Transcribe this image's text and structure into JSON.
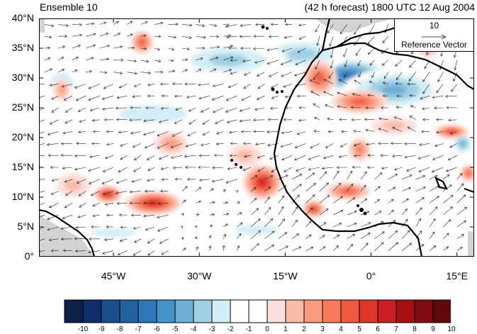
{
  "header": {
    "left_title": "Ensemble 10",
    "right_title": "(42 h forecast) 1800 UTC 12 Aug 2004"
  },
  "reference_vector": {
    "magnitude": "10",
    "label": "Reference Vector"
  },
  "chart_data": {
    "type": "heatmap",
    "description_fields": "anomaly field with wind vectors",
    "lat_range": [
      0,
      40
    ],
    "lon_range": [
      -58,
      18
    ],
    "lat_ticks": [
      "40°N",
      "35°N",
      "30°N",
      "25°N",
      "20°N",
      "15°N",
      "10°N",
      "5°N",
      "0°"
    ],
    "lon_ticks": [
      "45°W",
      "30°W",
      "15°W",
      "0°",
      "15°E"
    ],
    "lat_tick_values": [
      40,
      35,
      30,
      25,
      20,
      15,
      10,
      5,
      0
    ],
    "lon_tick_values": [
      -45,
      -30,
      -15,
      0,
      15
    ],
    "colorbar_labels": [
      "-10",
      "-9",
      "-8",
      "-7",
      "-6",
      "-5",
      "-4",
      "-3",
      "-2",
      "-1",
      "0",
      "1",
      "2",
      "3",
      "4",
      "5",
      "6",
      "7",
      "8",
      "9",
      "10"
    ],
    "colorbar_colors": [
      "#0d2149",
      "#0f2d69",
      "#1b4f8a",
      "#24629f",
      "#2e78b6",
      "#4693c8",
      "#6eaed5",
      "#9fcfe3",
      "#d4eef7",
      "#ffffff",
      "#ffffff",
      "#fde0dd",
      "#fcbba6",
      "#fc9a80",
      "#f6795c",
      "#ef5a42",
      "#e0362a",
      "#c91f23",
      "#a50f15",
      "#7f0d0f",
      "#5e0a0a"
    ],
    "anomaly_blobs": [
      {
        "lon": -4,
        "lat": 30.5,
        "value": -6,
        "rlon": 8,
        "rlat": 3
      },
      {
        "lon": 4,
        "lat": 28,
        "value": -4,
        "rlon": 9,
        "rlat": 3.5
      },
      {
        "lon": -12,
        "lat": 34,
        "value": -3,
        "rlon": 8,
        "rlat": 3
      },
      {
        "lon": -25,
        "lat": 33,
        "value": -3,
        "rlon": 10,
        "rlat": 3
      },
      {
        "lon": -38,
        "lat": 24,
        "value": -2,
        "rlon": 12,
        "rlat": 3
      },
      {
        "lon": -20,
        "lat": 4.5,
        "value": -2,
        "rlon": 8,
        "rlat": 1.5
      },
      {
        "lon": -45,
        "lat": 4,
        "value": -2,
        "rlon": 8,
        "rlat": 1.5
      },
      {
        "lon": 16,
        "lat": 19,
        "value": -4,
        "rlon": 2,
        "rlat": 2
      },
      {
        "lon": -54,
        "lat": 29,
        "value": -2,
        "rlon": 4,
        "rlat": 4
      },
      {
        "lon": -38,
        "lat": 9,
        "value": 7,
        "rlon": 5,
        "rlat": 2
      },
      {
        "lon": -46,
        "lat": 10.5,
        "value": 7,
        "rlon": 2.5,
        "rlat": 1.5
      },
      {
        "lon": -19,
        "lat": 12.5,
        "value": 7,
        "rlon": 3.5,
        "rlat": 3
      },
      {
        "lon": -10,
        "lat": 8,
        "value": 6,
        "rlon": 2,
        "rlat": 1.5
      },
      {
        "lon": -4,
        "lat": 11,
        "value": 5,
        "rlon": 4,
        "rlat": 1.5
      },
      {
        "lon": -2,
        "lat": 26,
        "value": 5,
        "rlon": 5,
        "rlat": 2
      },
      {
        "lon": -9,
        "lat": 30,
        "value": 5,
        "rlon": 3,
        "rlat": 3
      },
      {
        "lon": -40,
        "lat": 36,
        "value": 5,
        "rlon": 2,
        "rlat": 2
      },
      {
        "lon": 14,
        "lat": 21,
        "value": 6,
        "rlon": 3,
        "rlat": 1.2
      },
      {
        "lon": -2,
        "lat": 18,
        "value": 4,
        "rlon": 2,
        "rlat": 2
      },
      {
        "lon": -54,
        "lat": 28,
        "value": 3,
        "rlon": 1.5,
        "rlat": 2
      },
      {
        "lon": -35,
        "lat": 19,
        "value": 3,
        "rlon": 3,
        "rlat": 2
      },
      {
        "lon": 17,
        "lat": 14,
        "value": 5,
        "rlon": 1.5,
        "rlat": 1.5
      },
      {
        "lon": 10,
        "lat": 35,
        "value": 3,
        "rlon": 2,
        "rlat": 1.5
      },
      {
        "lon": -52,
        "lat": 12,
        "value": 2,
        "rlon": 3,
        "rlat": 2
      },
      {
        "lon": -22,
        "lat": 17,
        "value": 2,
        "rlon": 3,
        "rlat": 2
      },
      {
        "lon": 4,
        "lat": 22,
        "value": 2,
        "rlon": 4,
        "rlat": 1.5
      }
    ],
    "wind_field": "easterly trade winds with westward flow over ocean and southwesterly monsoon flow near Gulf of Guinea"
  }
}
